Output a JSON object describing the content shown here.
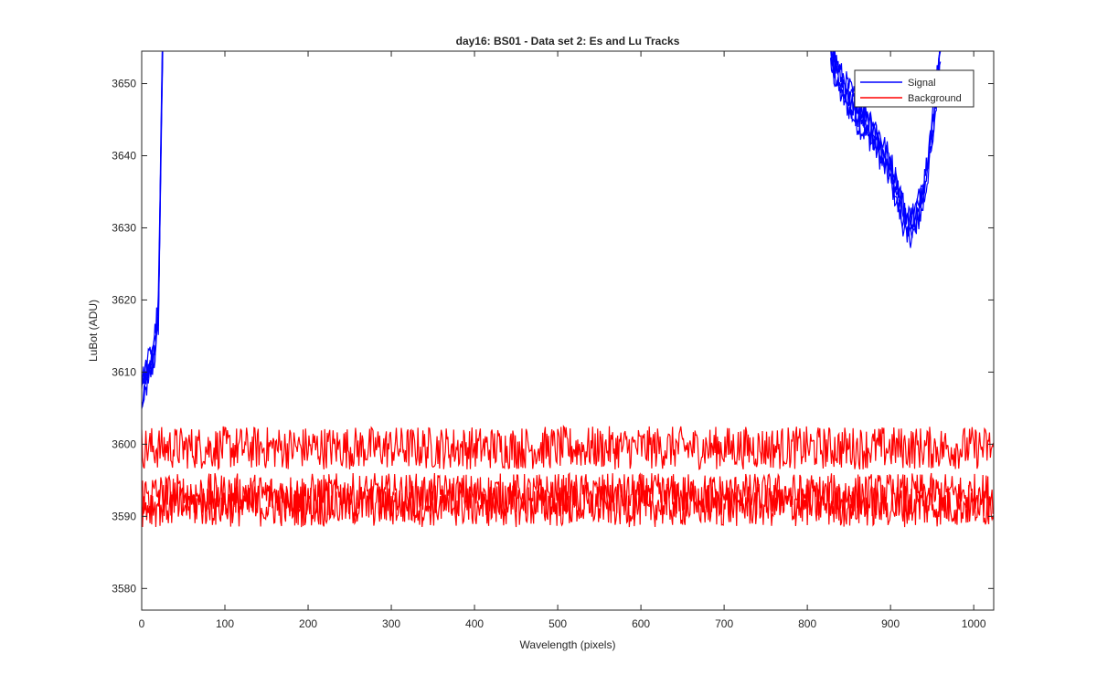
{
  "chart_data": {
    "type": "line",
    "title": "day16: BS01 - Data set 2: Es and Lu Tracks",
    "xlabel": "Wavelength (pixels)",
    "ylabel": "LuBot (ADU)",
    "xlim": [
      0,
      1024
    ],
    "ylim": [
      3577,
      3654.5
    ],
    "x_ticks": [
      0,
      100,
      200,
      300,
      400,
      500,
      600,
      700,
      800,
      900,
      1000
    ],
    "y_ticks": [
      3580,
      3590,
      3600,
      3610,
      3620,
      3630,
      3640,
      3650
    ],
    "grid": false,
    "legend_position": "top-right",
    "legend": [
      "Signal",
      "Background"
    ],
    "series": [
      {
        "name": "Signal",
        "color": "#0000ff",
        "x": [
          0,
          5,
          10,
          15,
          20,
          22,
          24,
          26,
          828,
          840,
          860,
          880,
          900,
          910,
          920,
          930,
          940,
          950,
          960
        ],
        "y": [
          3607,
          3609,
          3611,
          3613,
          3618,
          3632,
          3648,
          3660,
          3654,
          3650,
          3646,
          3643,
          3638,
          3634,
          3630,
          3631,
          3635,
          3643,
          3655
        ]
      },
      {
        "name": "Background",
        "color": "#ff0000",
        "x": [
          0,
          100,
          200,
          300,
          400,
          500,
          600,
          700,
          800,
          900,
          1000,
          1024
        ],
        "y": [
          3599.5,
          3599.5,
          3599.5,
          3599.5,
          3599.5,
          3599.5,
          3599.5,
          3599.5,
          3599.5,
          3599.5,
          3599.5,
          3599.5
        ]
      },
      {
        "name": "Background",
        "color": "#ff0000",
        "x": [
          0,
          100,
          200,
          300,
          400,
          500,
          600,
          700,
          800,
          900,
          1000,
          1024
        ],
        "y": [
          3593.0,
          3593.0,
          3593.0,
          3593.0,
          3593.0,
          3593.0,
          3593.0,
          3593.0,
          3593.0,
          3593.0,
          3593.0,
          3593.0
        ]
      },
      {
        "name": "Background",
        "color": "#ff0000",
        "x": [
          0,
          100,
          200,
          300,
          400,
          500,
          600,
          700,
          800,
          900,
          1000,
          1024
        ],
        "y": [
          3591.5,
          3591.5,
          3591.5,
          3591.5,
          3591.5,
          3591.5,
          3591.5,
          3591.5,
          3591.5,
          3591.5,
          3591.5,
          3591.5
        ]
      }
    ]
  }
}
